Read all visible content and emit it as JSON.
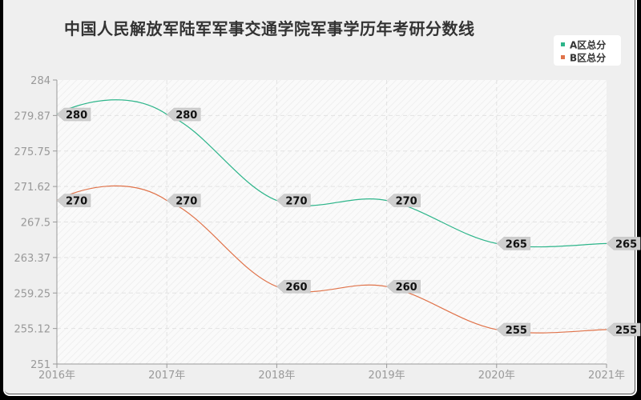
{
  "title": "中国人民解放军陆军军事交通学院军事学历年考研分数线",
  "legend": {
    "items": [
      {
        "label": "A区总分",
        "color": "#2db58a"
      },
      {
        "label": "B区总分",
        "color": "#e0734a"
      }
    ]
  },
  "chart_data": {
    "type": "line",
    "title": "中国人民解放军陆军军事交通学院军事学历年考研分数线",
    "xlabel": "",
    "ylabel": "",
    "categories": [
      "2016年",
      "2017年",
      "2018年",
      "2019年",
      "2020年",
      "2021年"
    ],
    "series": [
      {
        "name": "A区总分",
        "color": "#2db58a",
        "values": [
          280,
          280,
          270,
          270,
          265,
          265
        ]
      },
      {
        "name": "B区总分",
        "color": "#e0734a",
        "values": [
          270,
          270,
          260,
          260,
          255,
          255
        ]
      }
    ],
    "yticks": [
      "284",
      "279.87",
      "275.75",
      "271.62",
      "267.5",
      "263.37",
      "259.25",
      "255.12",
      "251"
    ],
    "ylim": [
      251,
      284
    ],
    "grid": true,
    "legend_position": "top-right",
    "smooth": true
  }
}
